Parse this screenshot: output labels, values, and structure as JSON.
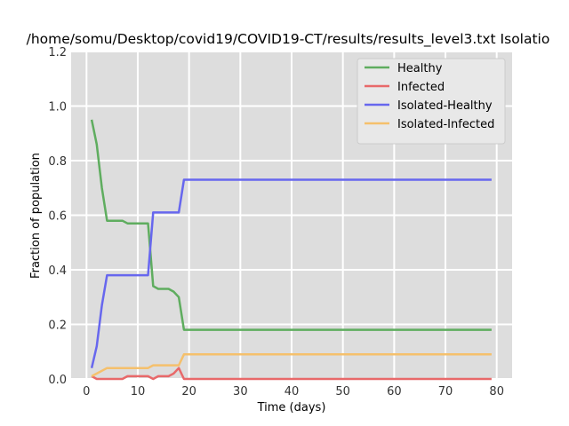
{
  "chart_data": {
    "type": "line",
    "title": "/home/somu/Desktop/covid19/COVID19-CT/results/results_level3.txt Isolatio",
    "xlabel": "Time (days)",
    "ylabel": "Fraction of population",
    "xlim": [
      -3,
      83
    ],
    "ylim": [
      0,
      1.2
    ],
    "xticks": [
      0,
      10,
      20,
      30,
      40,
      50,
      60,
      70,
      80
    ],
    "yticks": [
      0.0,
      0.2,
      0.4,
      0.6,
      0.8,
      1.0,
      1.2
    ],
    "xtick_labels": [
      "0",
      "10",
      "20",
      "30",
      "40",
      "50",
      "60",
      "70",
      "80"
    ],
    "ytick_labels": [
      "0.0",
      "0.2",
      "0.4",
      "0.6",
      "0.8",
      "1.0",
      "1.2"
    ],
    "grid": true,
    "legend_position": "top-right",
    "background": "#dddddd",
    "series": [
      {
        "name": "Healthy",
        "color": "#5fad5f",
        "x": [
          1,
          2,
          3,
          4,
          5,
          6,
          7,
          8,
          9,
          10,
          11,
          12,
          13,
          14,
          15,
          16,
          17,
          18,
          19,
          20,
          79
        ],
        "y": [
          0.95,
          0.86,
          0.7,
          0.58,
          0.58,
          0.58,
          0.58,
          0.57,
          0.57,
          0.57,
          0.57,
          0.57,
          0.34,
          0.33,
          0.33,
          0.33,
          0.32,
          0.3,
          0.18,
          0.18,
          0.18
        ]
      },
      {
        "name": "Infected",
        "color": "#e8696a",
        "x": [
          1,
          2,
          3,
          4,
          5,
          6,
          7,
          8,
          9,
          10,
          11,
          12,
          13,
          14,
          15,
          16,
          17,
          18,
          19,
          20,
          79
        ],
        "y": [
          0.01,
          0.0,
          0.0,
          0.0,
          0.0,
          0.0,
          0.0,
          0.01,
          0.01,
          0.01,
          0.01,
          0.01,
          0.0,
          0.01,
          0.01,
          0.01,
          0.02,
          0.04,
          0.0,
          0.0,
          0.0
        ]
      },
      {
        "name": "Isolated-Healthy",
        "color": "#6767ee",
        "x": [
          1,
          2,
          3,
          4,
          5,
          6,
          7,
          8,
          9,
          10,
          11,
          12,
          13,
          14,
          15,
          16,
          17,
          18,
          19,
          20,
          79
        ],
        "y": [
          0.04,
          0.12,
          0.27,
          0.38,
          0.38,
          0.38,
          0.38,
          0.38,
          0.38,
          0.38,
          0.38,
          0.38,
          0.61,
          0.61,
          0.61,
          0.61,
          0.61,
          0.61,
          0.73,
          0.73,
          0.73
        ]
      },
      {
        "name": "Isolated-Infected",
        "color": "#f5c06c",
        "x": [
          1,
          2,
          3,
          4,
          5,
          6,
          7,
          8,
          9,
          10,
          11,
          12,
          13,
          14,
          15,
          16,
          17,
          18,
          19,
          20,
          79
        ],
        "y": [
          0.01,
          0.02,
          0.03,
          0.04,
          0.04,
          0.04,
          0.04,
          0.04,
          0.04,
          0.04,
          0.04,
          0.04,
          0.05,
          0.05,
          0.05,
          0.05,
          0.05,
          0.05,
          0.09,
          0.09,
          0.09
        ]
      }
    ]
  }
}
